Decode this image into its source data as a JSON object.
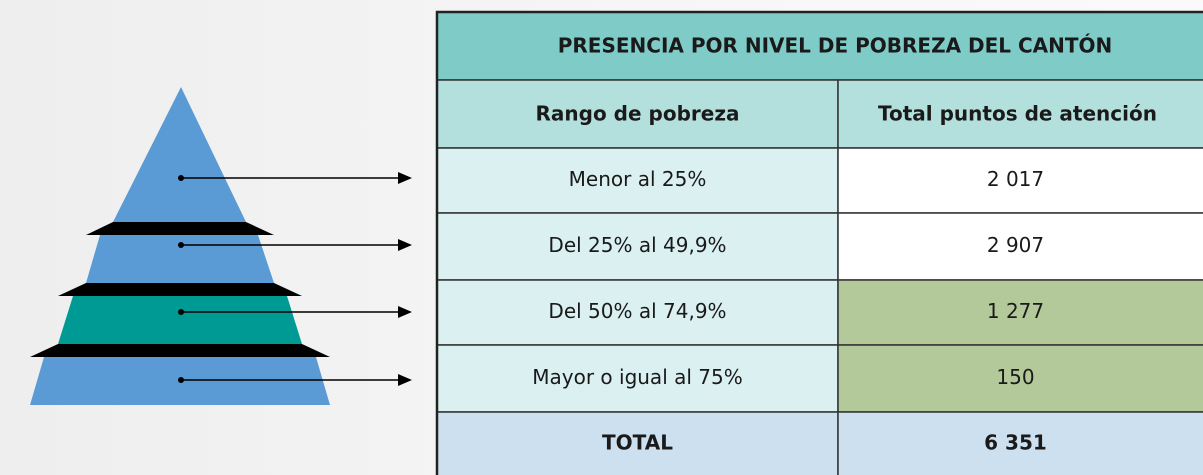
{
  "table": {
    "title": "PRESENCIA POR NIVEL DE POBREZA DEL CANTÓN",
    "header": [
      "Rango de pobreza",
      "Total puntos de atención"
    ],
    "rows": [
      [
        "Menor al 25%",
        "2 017"
      ],
      [
        "Del 25% al 49,9%",
        "2 907"
      ],
      [
        "Del 50% al 74,9%",
        "1 277"
      ],
      [
        "Mayor o igual al 75%",
        "150"
      ]
    ],
    "total": [
      "TOTAL",
      "6 351"
    ]
  }
}
